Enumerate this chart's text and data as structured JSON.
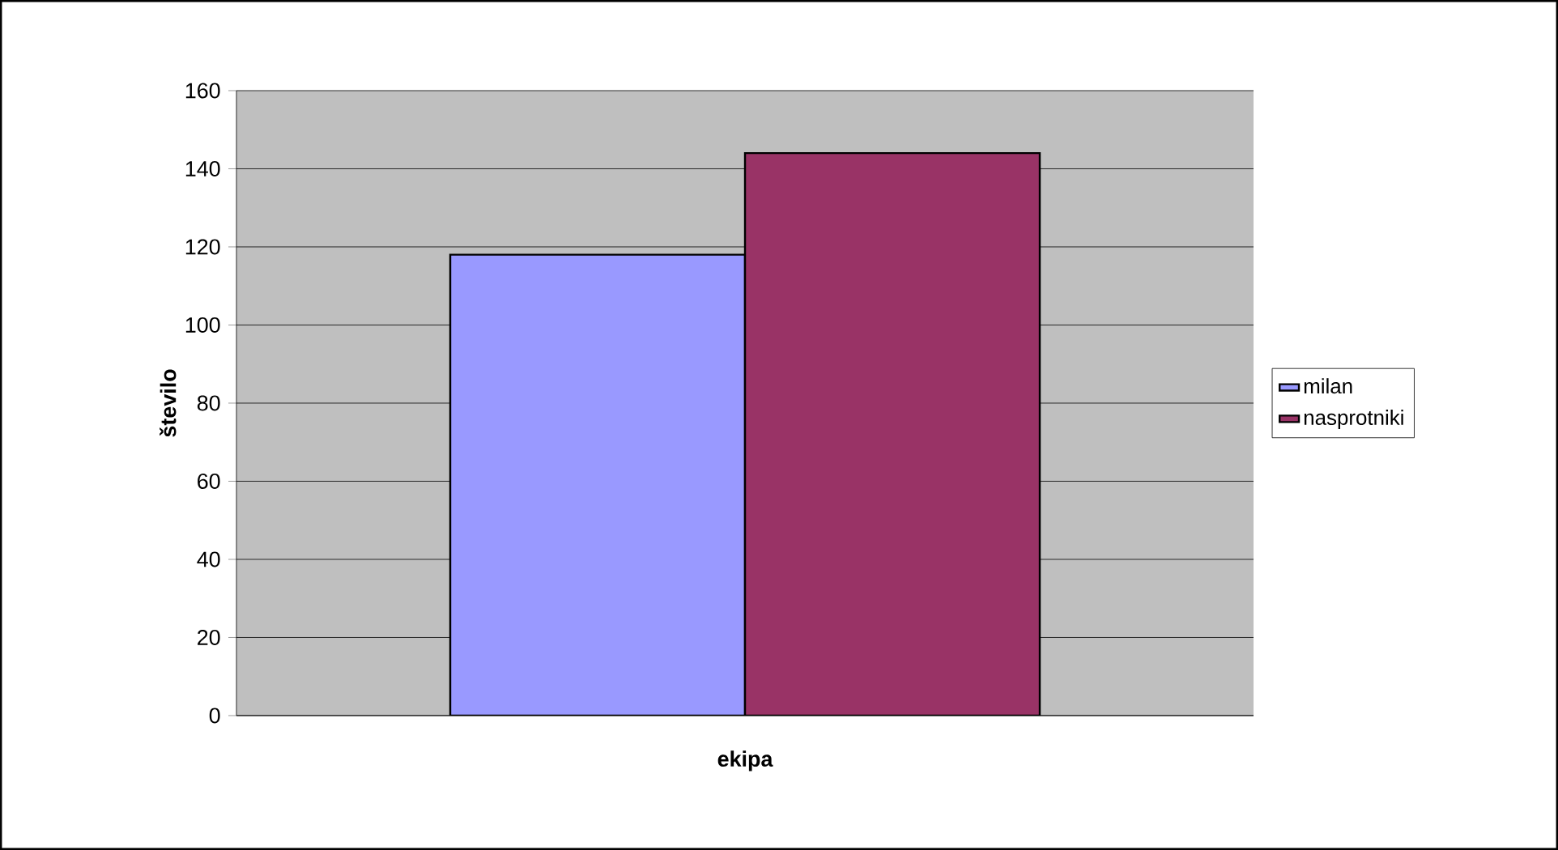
{
  "chart_data": {
    "type": "bar",
    "xlabel": "ekipa",
    "ylabel": "število",
    "categories": [
      null
    ],
    "series": [
      {
        "name": "milan",
        "color": "#9999ff",
        "values": [
          118
        ]
      },
      {
        "name": "nasprotniki",
        "color": "#993366",
        "values": [
          144
        ]
      }
    ],
    "ylim": [
      0,
      160
    ],
    "yticks": [
      0,
      20,
      40,
      60,
      80,
      100,
      120,
      140,
      160
    ],
    "grid": "y",
    "legend": "right",
    "tick_labels": "y"
  }
}
